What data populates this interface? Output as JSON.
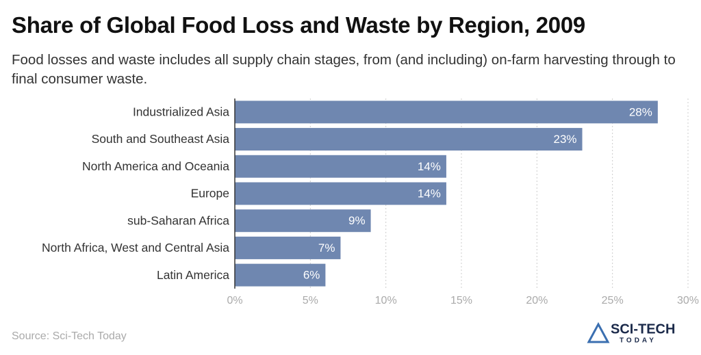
{
  "chart_data": {
    "type": "bar",
    "orientation": "horizontal",
    "title": "Share of Global Food Loss and Waste by Region, 2009",
    "subtitle": "Food losses and waste includes all supply chain stages, from (and including) on-farm harvesting through to final consumer waste.",
    "categories": [
      "Industrialized Asia",
      "South and Southeast Asia",
      "North America and Oceania",
      "Europe",
      "sub-Saharan Africa",
      "North Africa, West and Central Asia",
      "Latin America"
    ],
    "values": [
      28,
      23,
      14,
      14,
      9,
      7,
      6
    ],
    "value_labels": [
      "28%",
      "23%",
      "14%",
      "14%",
      "9%",
      "7%",
      "6%"
    ],
    "color": "#6f87b0",
    "xlim": [
      0,
      30
    ],
    "xticks": [
      {
        "value": 0,
        "label": "0%"
      },
      {
        "value": 5,
        "label": "5%"
      },
      {
        "value": 10,
        "label": "10%"
      },
      {
        "value": 15,
        "label": "15%"
      },
      {
        "value": 20,
        "label": "20%"
      },
      {
        "value": 25,
        "label": "25%"
      },
      {
        "value": 30,
        "label": "30%"
      }
    ],
    "grid": true,
    "source": "Source: Sci-Tech Today",
    "logo": {
      "name": "SCI-TECH",
      "tagline": "TODAY"
    }
  }
}
